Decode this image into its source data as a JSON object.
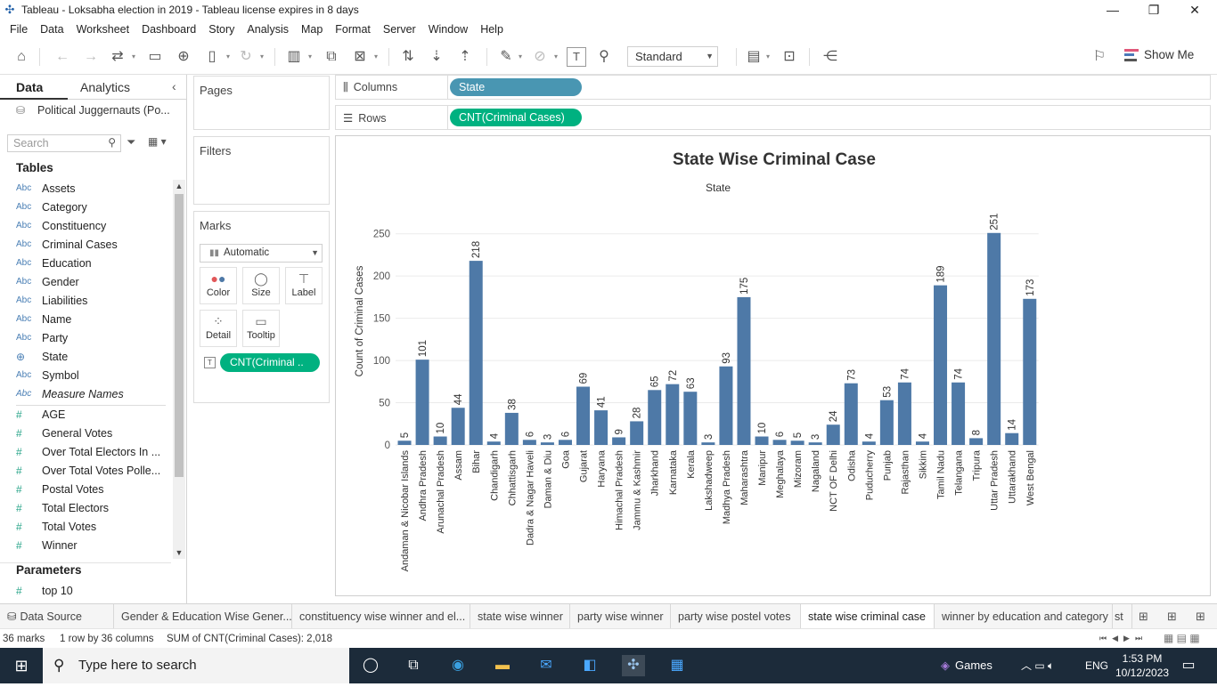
{
  "window": {
    "title": "Tableau - Loksabha election in 2019 - Tableau license expires in 8 days"
  },
  "menu": [
    "File",
    "Data",
    "Worksheet",
    "Dashboard",
    "Story",
    "Analysis",
    "Map",
    "Format",
    "Server",
    "Window",
    "Help"
  ],
  "toolbar": {
    "fit_mode": "Standard",
    "show_me": "Show Me"
  },
  "left_pane": {
    "tab_data": "Data",
    "tab_analytics": "Analytics",
    "datasource": "Political Juggernauts (Po...",
    "search_placeholder": "Search",
    "tables_header": "Tables",
    "dimensions": [
      {
        "type": "Abc",
        "name": "Assets"
      },
      {
        "type": "Abc",
        "name": "Category"
      },
      {
        "type": "Abc",
        "name": "Constituency"
      },
      {
        "type": "Abc",
        "name": "Criminal Cases"
      },
      {
        "type": "Abc",
        "name": "Education"
      },
      {
        "type": "Abc",
        "name": "Gender"
      },
      {
        "type": "Abc",
        "name": "Liabilities"
      },
      {
        "type": "Abc",
        "name": "Name"
      },
      {
        "type": "Abc",
        "name": "Party"
      },
      {
        "type": "geo",
        "name": "State"
      },
      {
        "type": "Abc",
        "name": "Symbol"
      },
      {
        "type": "Abc",
        "name": "Measure Names"
      }
    ],
    "measures": [
      {
        "type": "#",
        "name": "AGE"
      },
      {
        "type": "#",
        "name": "General Votes"
      },
      {
        "type": "#",
        "name": "Over Total Electors  In ..."
      },
      {
        "type": "#",
        "name": "Over Total Votes Polle..."
      },
      {
        "type": "#",
        "name": "Postal Votes"
      },
      {
        "type": "#",
        "name": "Total Electors"
      },
      {
        "type": "#",
        "name": "Total Votes"
      },
      {
        "type": "#",
        "name": "Winner"
      }
    ],
    "parameters_header": "Parameters",
    "parameters": [
      {
        "type": "#",
        "name": "top 10"
      }
    ]
  },
  "cards": {
    "pages": "Pages",
    "filters": "Filters",
    "marks": "Marks",
    "mark_type": "Automatic",
    "buttons": {
      "color": "Color",
      "size": "Size",
      "label": "Label",
      "detail": "Detail",
      "tooltip": "Tooltip"
    },
    "label_pill": "CNT(Criminal .."
  },
  "shelves": {
    "columns_label": "Columns",
    "columns_pill": "State",
    "rows_label": "Rows",
    "rows_pill": "CNT(Criminal Cases)"
  },
  "chart_data": {
    "type": "bar",
    "title": "State Wise Criminal Case",
    "subtitle": "State",
    "ylabel": "Count of Criminal Cases",
    "ylim": [
      0,
      275
    ],
    "yticks": [
      0,
      50,
      100,
      150,
      200,
      250
    ],
    "bar_color": "#4e79a7",
    "grid": true,
    "categories": [
      "Andaman & Nicobar Islands",
      "Andhra Pradesh",
      "Arunachal Pradesh",
      "Assam",
      "Bihar",
      "Chandigarh",
      "Chhattisgarh",
      "Dadra & Nagar Haveli",
      "Daman & Diu",
      "Goa",
      "Gujarat",
      "Haryana",
      "Himachal Pradesh",
      "Jammu & Kashmir",
      "Jharkhand",
      "Karnataka",
      "Kerala",
      "Lakshadweep",
      "Madhya Pradesh",
      "Maharashtra",
      "Manipur",
      "Meghalaya",
      "Mizoram",
      "Nagaland",
      "NCT OF Delhi",
      "Odisha",
      "Puducherry",
      "Punjab",
      "Rajasthan",
      "Sikkim",
      "Tamil Nadu",
      "Telangana",
      "Tripura",
      "Uttar Pradesh",
      "Uttarakhand",
      "West Bengal"
    ],
    "values": [
      5,
      101,
      10,
      44,
      218,
      4,
      38,
      6,
      3,
      6,
      69,
      41,
      9,
      28,
      65,
      72,
      63,
      3,
      93,
      175,
      10,
      6,
      5,
      3,
      24,
      73,
      4,
      53,
      74,
      4,
      189,
      74,
      8,
      251,
      14,
      173
    ]
  },
  "sheet_tabs": [
    "Data Source",
    "Gender & Education Wise Gener...",
    "constituency wise winner and el...",
    "state wise winner",
    "party wise winner",
    "party wise postel votes",
    "state wise criminal case",
    "winner by education and category",
    "st"
  ],
  "status": {
    "marks": "36 marks",
    "layout": "1 row by 36 columns",
    "sum": "SUM of CNT(Criminal Cases): 2,018"
  },
  "taskbar": {
    "search_placeholder": "Type here to search",
    "games": "Games",
    "lang": "ENG",
    "time": "1:53 PM",
    "date": "10/12/2023"
  }
}
